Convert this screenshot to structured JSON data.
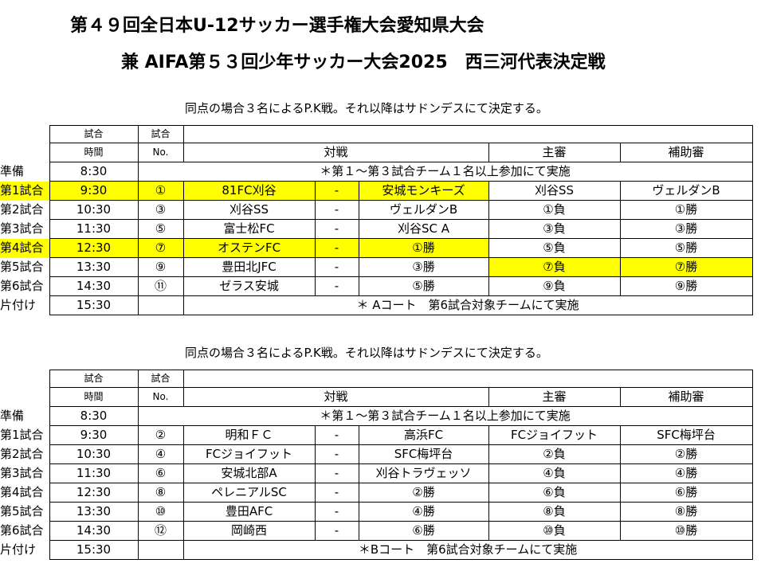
{
  "title_line1": "第４９回全日本U-12サッカー選手権大会愛知県大会",
  "title_line2": "兼 AIFA第５３回少年サッカー大会2025　西三河代表決定戦",
  "header": {
    "time_top": "試合",
    "time_bottom": "時間",
    "no_top": "試合",
    "no_bottom": "No.",
    "match": "対戦",
    "referee": "主審",
    "assistant": "補助審"
  },
  "tables": [
    {
      "note": "同点の場合３名によるP.K戦。それ以降はサドンデスにて決定する。",
      "prep_label": "準備",
      "prep_time": "8:30",
      "prep_note": "＊第１～第３試合チーム１名以上参加にて実施",
      "cleanup_label": "片付け",
      "cleanup_time": "15:30",
      "cleanup_note": "＊ Aコート　第6試合対象チームにて実施",
      "highlight_color": "#ffff00",
      "rows": [
        {
          "label": "第1試合",
          "time": "9:30",
          "no": "①",
          "home": "81FC刈谷",
          "dash": "-",
          "away": "安城モンキーズ",
          "referee": "刈谷SS",
          "assistant": "ヴェルダンB"
        },
        {
          "label": "第2試合",
          "time": "10:30",
          "no": "③",
          "home": "刈谷SS",
          "dash": "-",
          "away": "ヴェルダンB",
          "referee": "①負",
          "assistant": "①勝"
        },
        {
          "label": "第3試合",
          "time": "11:30",
          "no": "⑤",
          "home": "富士松FC",
          "dash": "-",
          "away": "刈谷SC A",
          "referee": "③負",
          "assistant": "③勝"
        },
        {
          "label": "第4試合",
          "time": "12:30",
          "no": "⑦",
          "home": "オステンFC",
          "dash": "-",
          "away": "①勝",
          "referee": "⑤負",
          "assistant": "⑤勝"
        },
        {
          "label": "第5試合",
          "time": "13:30",
          "no": "⑨",
          "home": "豊田北JFC",
          "dash": "-",
          "away": "③勝",
          "referee": "⑦負",
          "assistant": "⑦勝"
        },
        {
          "label": "第6試合",
          "time": "14:30",
          "no": "⑪",
          "home": "ゼラス安城",
          "dash": "-",
          "away": "⑤勝",
          "referee": "⑨負",
          "assistant": "⑨勝"
        }
      ]
    },
    {
      "note": "同点の場合３名によるP.K戦。それ以降はサドンデスにて決定する。",
      "prep_label": "準備",
      "prep_time": "8:30",
      "prep_note": "＊第１～第３試合チーム１名以上参加にて実施",
      "cleanup_label": "片付け",
      "cleanup_time": "15:30",
      "cleanup_note": "＊Bコート　第6試合対象チームにて実施",
      "rows": [
        {
          "label": "第1試合",
          "time": "9:30",
          "no": "②",
          "home": "明和ＦＣ",
          "dash": "-",
          "away": "高浜FC",
          "referee": "FCジョイフット",
          "assistant": "SFC梅坪台"
        },
        {
          "label": "第2試合",
          "time": "10:30",
          "no": "④",
          "home": "FCジョイフット",
          "dash": "-",
          "away": "SFC梅坪台",
          "referee": "②負",
          "assistant": "②勝"
        },
        {
          "label": "第3試合",
          "time": "11:30",
          "no": "⑥",
          "home": "安城北部A",
          "dash": "-",
          "away": "刈谷トラヴェッソ",
          "referee": "④負",
          "assistant": "④勝"
        },
        {
          "label": "第4試合",
          "time": "12:30",
          "no": "⑧",
          "home": "ペレニアルSC",
          "dash": "-",
          "away": "②勝",
          "referee": "⑥負",
          "assistant": "⑥勝"
        },
        {
          "label": "第5試合",
          "time": "13:30",
          "no": "⑩",
          "home": "豊田AFC",
          "dash": "-",
          "away": "④勝",
          "referee": "⑧負",
          "assistant": "⑧勝"
        },
        {
          "label": "第6試合",
          "time": "14:30",
          "no": "⑫",
          "home": "岡崎西",
          "dash": "-",
          "away": "⑥勝",
          "referee": "⑩負",
          "assistant": "⑩勝"
        }
      ]
    }
  ]
}
